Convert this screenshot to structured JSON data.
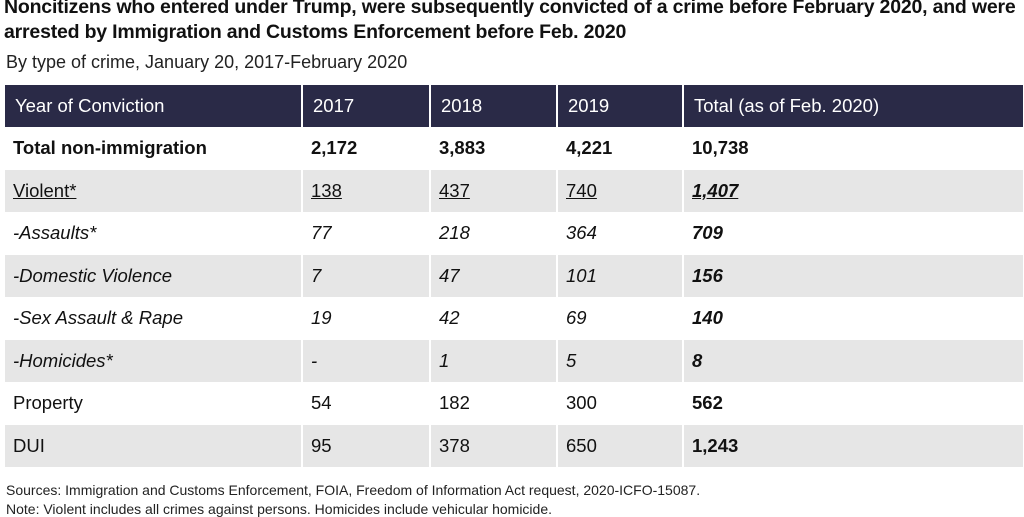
{
  "header": {
    "title": "Noncitizens who entered under Trump, were subsequently convicted of a crime before February 2020, and were arrested by Immigration and Customs Enforcement before Feb. 2020",
    "subtitle": "By type of crime, January 20, 2017-February 2020"
  },
  "table": {
    "columns": [
      "Year of Conviction",
      "2017",
      "2018",
      "2019",
      "Total (as of Feb. 2020)"
    ],
    "rows": [
      [
        "Total non-immigration",
        "2,172",
        "3,883",
        "4,221",
        "10,738"
      ],
      [
        "Violent*",
        "138",
        "437",
        "740",
        "1,407"
      ],
      [
        "-Assaults*",
        "77",
        "218",
        "364",
        "709"
      ],
      [
        "-Domestic Violence",
        "7",
        "47",
        "101",
        "156"
      ],
      [
        "-Sex Assault & Rape",
        "19",
        "42",
        "69",
        "140"
      ],
      [
        "-Homicides*",
        "-",
        "1",
        "5",
        "8"
      ],
      [
        "Property",
        "54",
        "182",
        "300",
        "562"
      ],
      [
        "DUI",
        "95",
        "378",
        "650",
        "1,243"
      ]
    ]
  },
  "footer": {
    "sources": "Sources: Immigration and Customs Enforcement, FOIA, Freedom of Information Act request, 2020-ICFO-15087.",
    "note": "Note: Violent includes all crimes against persons. Homicides include vehicular homicide."
  }
}
